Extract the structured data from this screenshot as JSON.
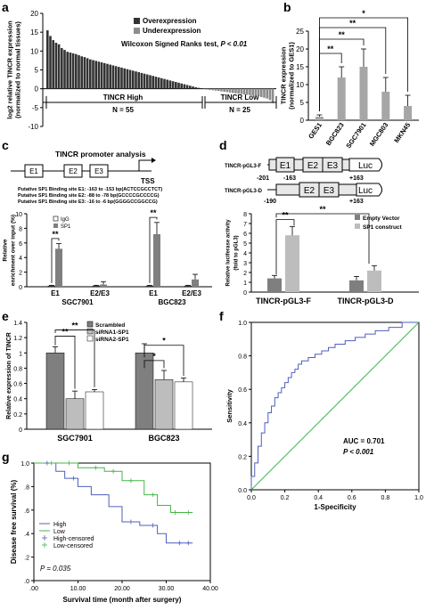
{
  "colors": {
    "dark": "#7f7f7f",
    "mid": "#bdbdbd",
    "light": "#ffffff",
    "blue": "#4f5fbd",
    "green": "#44b54a",
    "axis": "#000000"
  },
  "chart_data": [
    {
      "panel": "a",
      "type": "bar",
      "ylabel": "log2 relative TINCR expression\n(normalized to normal tissues)",
      "ylim": [
        -10,
        20
      ],
      "yticks": [
        "20",
        "15",
        "10",
        "5",
        "0",
        "-5",
        "-10"
      ],
      "legend": [
        "Overexpression",
        "Underexpression"
      ],
      "stat": "Wilcoxon Signed Ranks test,",
      "pval": "P < 0.01",
      "groups": [
        {
          "label": "TINCR High",
          "n": "N = 55"
        },
        {
          "label": "TINCR Low",
          "n": "N = 25"
        }
      ],
      "values": [
        15.5,
        14.0,
        12.9,
        12.2,
        11.8,
        10.8,
        10.3,
        9.8,
        9.6,
        9.4,
        9.2,
        8.9,
        8.6,
        8.4,
        8.1,
        7.8,
        7.6,
        7.4,
        7.2,
        7.0,
        6.8,
        6.6,
        6.4,
        6.2,
        6.0,
        5.8,
        5.6,
        5.4,
        5.2,
        5.0,
        4.8,
        4.6,
        4.4,
        4.2,
        4.0,
        3.8,
        3.6,
        3.4,
        3.2,
        3.0,
        2.8,
        2.6,
        2.4,
        2.2,
        2.0,
        1.8,
        1.6,
        1.4,
        1.2,
        1.0,
        0.8,
        0.6,
        0.4,
        0.25,
        0.1,
        -0.1,
        -0.2,
        -0.3,
        -0.4,
        -0.5,
        -0.6,
        -0.7,
        -0.8,
        -0.9,
        -1.0,
        -1.1,
        -1.2,
        -1.3,
        -1.4,
        -1.5,
        -1.6,
        -1.7,
        -1.8,
        -1.9,
        -2.0,
        -2.2,
        -2.4,
        -2.6,
        -3.0,
        -3.8
      ]
    },
    {
      "panel": "b",
      "type": "bar",
      "ylabel": "TINCR expression\n(normalized to GES1)",
      "ylim": [
        0,
        25
      ],
      "yticks": [
        "0",
        "5",
        "10",
        "15",
        "20",
        "25"
      ],
      "categories": [
        "GES1",
        "BGC823",
        "SGC7901",
        "MGC803",
        "MKN45"
      ],
      "values": [
        1.0,
        12.0,
        15.0,
        8.0,
        4.0
      ],
      "errors": [
        0.5,
        3.0,
        5.0,
        4.0,
        3.0
      ],
      "sig": [
        "**",
        "**",
        "**",
        "*"
      ]
    },
    {
      "panel": "c",
      "type": "bar",
      "title": "TINCR promoter analysis",
      "schematic": {
        "boxes": [
          "E1",
          "E2",
          "E3"
        ],
        "tss": "TSS"
      },
      "sites": [
        "Putative SP1 Binding site E1: -163 to -153 bp(ACTCCGCCTCT)",
        "Putative SP1 Binding site E2: -88 to -78 bp(GCCCCGCCCCG)",
        "Putative SP1 Binding site E3: -16 to -6 bp(GGGGCCGGCCG)"
      ],
      "ylabel": "Relative\nenrichment over input (%)",
      "ylim": [
        0,
        10
      ],
      "yticks": [
        "0",
        "2",
        "4",
        "6",
        "8",
        "10"
      ],
      "legend": [
        "IgG",
        "SP1"
      ],
      "categories": [
        "E1",
        "E2/E3",
        "E1",
        "E2/E3"
      ],
      "groups": [
        "SGC7901",
        "BGC823"
      ],
      "series": [
        {
          "name": "IgG",
          "values": [
            0.1,
            0.1,
            0.1,
            0.1
          ],
          "errors": [
            0.1,
            0.1,
            0.1,
            0.1
          ]
        },
        {
          "name": "SP1",
          "values": [
            5.2,
            0.3,
            7.2,
            1.0
          ],
          "errors": [
            0.7,
            0.4,
            1.6,
            0.7
          ]
        }
      ],
      "sig": [
        "**",
        "**"
      ]
    },
    {
      "panel": "d",
      "type": "bar",
      "constructs": [
        {
          "name": "TINCR-pGL3-F",
          "start": "-201",
          "site": "-163",
          "end": "+163",
          "boxes": [
            "E1",
            "E2",
            "E3"
          ],
          "reporter": "Luc"
        },
        {
          "name": "TINCR-pGL3-D",
          "start": "-190",
          "end": "+163",
          "boxes": [
            "E2",
            "E3"
          ],
          "reporter": "Luc"
        }
      ],
      "ylabel": "Relative luciferase activity\n(fold to pGL3)",
      "ylim": [
        0,
        8
      ],
      "yticks": [
        "0",
        "1",
        "2",
        "3",
        "4",
        "5",
        "6",
        "7",
        "8"
      ],
      "legend": [
        "Empty Vector",
        "SP1 construct"
      ],
      "categories": [
        "TINCR-pGL3-F",
        "TINCR-pGL3-D"
      ],
      "series": [
        {
          "name": "Empty Vector",
          "values": [
            1.4,
            1.2
          ],
          "errors": [
            0.3,
            0.4
          ]
        },
        {
          "name": "SP1 construct",
          "values": [
            5.8,
            2.2
          ],
          "errors": [
            0.9,
            0.5
          ]
        }
      ],
      "sig": [
        "**",
        "**"
      ]
    },
    {
      "panel": "e",
      "type": "bar",
      "ylabel": "Relative expression of TINCR",
      "ylim": [
        0,
        1.4
      ],
      "yticks": [
        "0",
        "0.2",
        "0.4",
        "0.6",
        "0.8",
        "1",
        "1.2",
        "1.4"
      ],
      "legend": [
        "Scrambled",
        "siRNA1-SP1",
        "siRNA2-SP1"
      ],
      "categories": [
        "SGC7901",
        "BGC823"
      ],
      "series": [
        {
          "name": "Scrambled",
          "values": [
            1.0,
            1.0
          ],
          "errors": [
            0.08,
            0.12
          ]
        },
        {
          "name": "siRNA1-SP1",
          "values": [
            0.4,
            0.65
          ],
          "errors": [
            0.1,
            0.12
          ]
        },
        {
          "name": "siRNA2-SP1",
          "values": [
            0.49,
            0.62
          ],
          "errors": [
            0.03,
            0.05
          ]
        }
      ],
      "sig": [
        "**",
        "**",
        "*",
        "*"
      ]
    },
    {
      "panel": "f",
      "type": "line",
      "xlabel": "1-Specificity",
      "ylabel": "Sensitivity",
      "xlim": [
        0,
        1
      ],
      "ylim": [
        0,
        1
      ],
      "xticks": [
        "0.0",
        "0.2",
        "0.4",
        "0.6",
        "0.8",
        "1.0"
      ],
      "yticks": [
        "0.0",
        "0.2",
        "0.4",
        "0.6",
        "0.8",
        "1.0"
      ],
      "auc": "AUC = 0.701",
      "pval": "P < 0.001",
      "x": [
        0,
        0,
        0.02,
        0.02,
        0.04,
        0.04,
        0.06,
        0.06,
        0.08,
        0.08,
        0.1,
        0.1,
        0.12,
        0.12,
        0.14,
        0.14,
        0.16,
        0.16,
        0.18,
        0.18,
        0.2,
        0.2,
        0.22,
        0.22,
        0.24,
        0.24,
        0.26,
        0.26,
        0.28,
        0.28,
        0.3,
        0.3,
        0.34,
        0.34,
        0.38,
        0.38,
        0.42,
        0.42,
        0.46,
        0.46,
        0.5,
        0.5,
        0.56,
        0.56,
        0.62,
        0.62,
        0.68,
        0.68,
        0.74,
        0.74,
        0.82,
        0.82,
        0.9,
        0.9,
        1.0
      ],
      "y": [
        0,
        0.08,
        0.08,
        0.16,
        0.16,
        0.26,
        0.26,
        0.34,
        0.34,
        0.4,
        0.4,
        0.46,
        0.46,
        0.5,
        0.5,
        0.55,
        0.55,
        0.58,
        0.58,
        0.61,
        0.61,
        0.64,
        0.64,
        0.67,
        0.67,
        0.7,
        0.7,
        0.72,
        0.72,
        0.75,
        0.75,
        0.77,
        0.77,
        0.79,
        0.79,
        0.81,
        0.81,
        0.83,
        0.83,
        0.85,
        0.85,
        0.87,
        0.87,
        0.89,
        0.89,
        0.91,
        0.91,
        0.93,
        0.93,
        0.95,
        0.95,
        0.97,
        0.97,
        1.0,
        1.0
      ]
    },
    {
      "panel": "g",
      "type": "line",
      "xlabel": "Survival time (month after surgery)",
      "ylabel": "Disease free survival (%)",
      "xlim": [
        0,
        40
      ],
      "ylim": [
        0,
        1
      ],
      "xticks": [
        ".00",
        "10.00",
        "20.00",
        "30.00",
        "40.00"
      ],
      "yticks": [
        ".0",
        ".2",
        ".4",
        ".6",
        ".8",
        "1.0"
      ],
      "legend": [
        "High",
        "Low",
        "High-censored",
        "Low-censored"
      ],
      "pval": "P = 0.035",
      "series": [
        {
          "name": "High",
          "x": [
            0,
            5,
            5,
            7,
            7,
            10,
            10,
            13,
            13,
            17,
            17,
            20,
            20,
            24,
            24,
            28,
            28,
            30,
            30,
            36
          ],
          "y": [
            1,
            1,
            0.93,
            0.93,
            0.87,
            0.87,
            0.8,
            0.8,
            0.73,
            0.73,
            0.63,
            0.63,
            0.5,
            0.5,
            0.47,
            0.47,
            0.4,
            0.4,
            0.32,
            0.32
          ]
        },
        {
          "name": "Low",
          "x": [
            0,
            10,
            10,
            16,
            16,
            20,
            20,
            25,
            25,
            28,
            28,
            31,
            31,
            36
          ],
          "y": [
            1,
            1,
            0.96,
            0.96,
            0.93,
            0.93,
            0.85,
            0.85,
            0.73,
            0.73,
            0.64,
            0.64,
            0.58,
            0.58
          ]
        },
        {
          "name": "High-censored",
          "x": [
            3,
            9,
            22,
            27,
            33,
            35
          ],
          "y": [
            1,
            0.87,
            0.5,
            0.47,
            0.32,
            0.32
          ]
        },
        {
          "name": "Low-censored",
          "x": [
            4,
            8,
            14,
            18,
            22,
            27,
            32,
            35
          ],
          "y": [
            1,
            1,
            0.96,
            0.93,
            0.85,
            0.73,
            0.58,
            0.58
          ]
        }
      ]
    }
  ]
}
